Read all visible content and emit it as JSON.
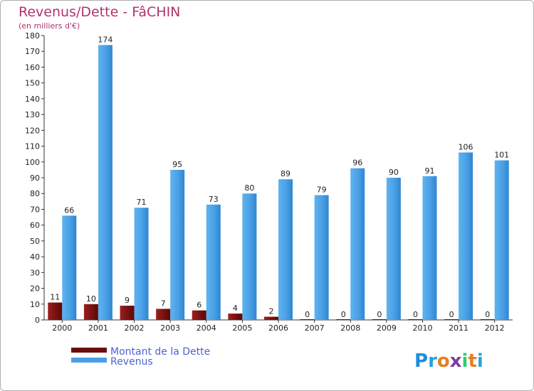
{
  "chart_data": {
    "type": "bar",
    "title": "Revenus/Dette - FâCHIN",
    "subtitle": "(en milliers d'€)",
    "categories": [
      "2000",
      "2001",
      "2002",
      "2003",
      "2004",
      "2005",
      "2006",
      "2007",
      "2008",
      "2009",
      "2010",
      "2011",
      "2012"
    ],
    "series": [
      {
        "name": "Montant de la Dette",
        "color": "#7a1010",
        "values": [
          11,
          10,
          9,
          7,
          6,
          4,
          2,
          0,
          0,
          0,
          0,
          0,
          0
        ]
      },
      {
        "name": "Revenus",
        "color": "#4aa0e6",
        "values": [
          66,
          174,
          71,
          95,
          73,
          80,
          89,
          79,
          96,
          90,
          91,
          106,
          101
        ]
      }
    ],
    "ylim": [
      0,
      180
    ],
    "ystep": 10,
    "grid": false,
    "legend_position": "bottom-left"
  },
  "logo": {
    "text": "Proxiti",
    "letters": [
      "P",
      "r",
      "o",
      "x",
      "i",
      "t",
      "i"
    ],
    "colors": [
      "#1f8fd8",
      "#2aa0e0",
      "#e67e22",
      "#7b3f9e",
      "#2ecc71",
      "#e67e22",
      "#2aa0e0"
    ]
  }
}
